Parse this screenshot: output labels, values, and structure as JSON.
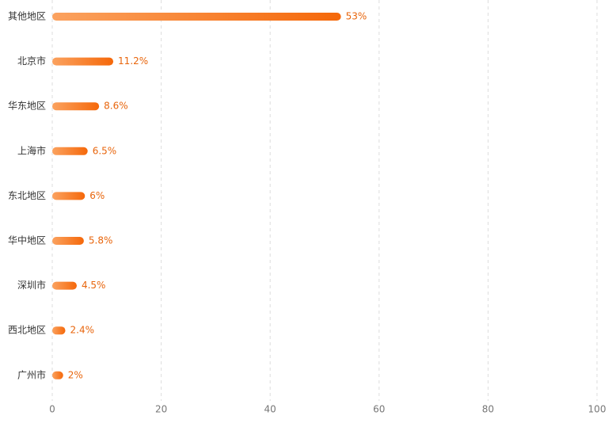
{
  "chart_data": {
    "type": "hbar",
    "categories": [
      "其他地区",
      "北京市",
      "华东地区",
      "上海市",
      "东北地区",
      "华中地区",
      "深圳市",
      "西北地区",
      "广州市"
    ],
    "values": [
      53,
      11.2,
      8.6,
      6.5,
      6,
      5.8,
      4.5,
      2.4,
      2
    ],
    "value_labels": [
      "53%",
      "11.2%",
      "8.6%",
      "6.5%",
      "6%",
      "5.8%",
      "4.5%",
      "2.4%",
      "2%"
    ],
    "color": [
      "#fba25f",
      "#f5680a"
    ],
    "label_color": "#e8650c",
    "xlim": [
      0,
      100
    ],
    "xticks": [
      0,
      20,
      40,
      60,
      80,
      100
    ],
    "grid": true
  }
}
